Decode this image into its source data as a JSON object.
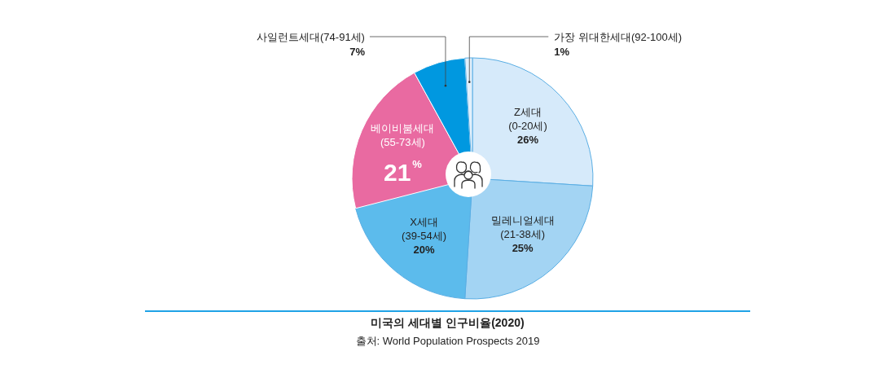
{
  "chart_data": {
    "type": "pie",
    "title": "미국의 세대별 인구비율(2020)",
    "annotations": [
      "출처: World Population Prospects 2019"
    ],
    "categories": [
      "Z세대(0-20세)",
      "밀레니얼세대(21-38세)",
      "X세대(39-54세)",
      "베이비붐세대(55-73세)",
      "사일런트세대(74-91세)",
      "가장 위대한세대(92-100세)"
    ],
    "values": [
      26,
      25,
      20,
      21,
      7,
      1
    ],
    "colors": [
      "#d6eafa",
      "#a3d4f3",
      "#5cbbec",
      "#e96aa1",
      "#0098e0",
      "#e2f0fb"
    ],
    "value_labels": [
      "26%",
      "25%",
      "20%",
      "21$^{%}$",
      "7%",
      "1%"
    ]
  }
}
